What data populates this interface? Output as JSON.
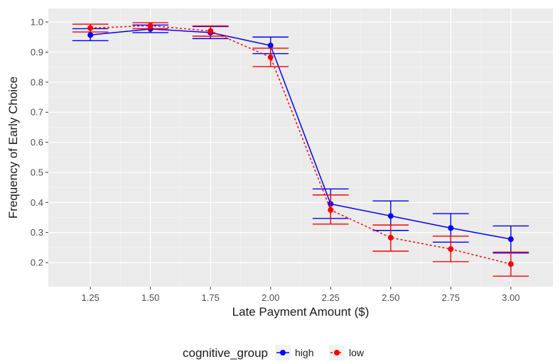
{
  "chart_data": {
    "type": "line",
    "title": "",
    "xlabel": "Late Payment Amount ($)",
    "ylabel": "Frequency of Early Choice",
    "x": [
      1.25,
      1.5,
      1.75,
      2.0,
      2.25,
      2.5,
      2.75,
      3.0
    ],
    "x_tick_labels": [
      "1.25",
      "1.50",
      "1.75",
      "2.00",
      "2.25",
      "2.50",
      "2.75",
      "3.00"
    ],
    "y_ticks": [
      0.2,
      0.3,
      0.4,
      0.5,
      0.6,
      0.7,
      0.8,
      0.9,
      1.0
    ],
    "y_tick_labels": [
      "0.2",
      "0.3",
      "0.4",
      "0.5",
      "0.6",
      "0.7",
      "0.8",
      "0.9",
      "1.0"
    ],
    "xlim": [
      1.075,
      3.175
    ],
    "ylim": [
      0.12,
      1.045
    ],
    "grid": true,
    "legend": {
      "title": "cognitive_group",
      "position": "bottom"
    },
    "series": [
      {
        "name": "high",
        "color": "#0000ff",
        "linestyle": "solid",
        "values": [
          0.957,
          0.977,
          0.965,
          0.922,
          0.395,
          0.355,
          0.315,
          0.278
        ],
        "error_low": [
          0.938,
          0.965,
          0.945,
          0.895,
          0.347,
          0.307,
          0.268,
          0.232
        ],
        "error_high": [
          0.978,
          0.99,
          0.985,
          0.95,
          0.445,
          0.405,
          0.363,
          0.322
        ]
      },
      {
        "name": "low",
        "color": "#ff0000",
        "linestyle": "dotted",
        "values": [
          0.98,
          0.988,
          0.97,
          0.883,
          0.375,
          0.283,
          0.245,
          0.195
        ],
        "error_low": [
          0.967,
          0.978,
          0.953,
          0.852,
          0.328,
          0.238,
          0.203,
          0.155
        ],
        "error_high": [
          0.993,
          0.998,
          0.987,
          0.913,
          0.425,
          0.325,
          0.288,
          0.235
        ]
      }
    ]
  }
}
